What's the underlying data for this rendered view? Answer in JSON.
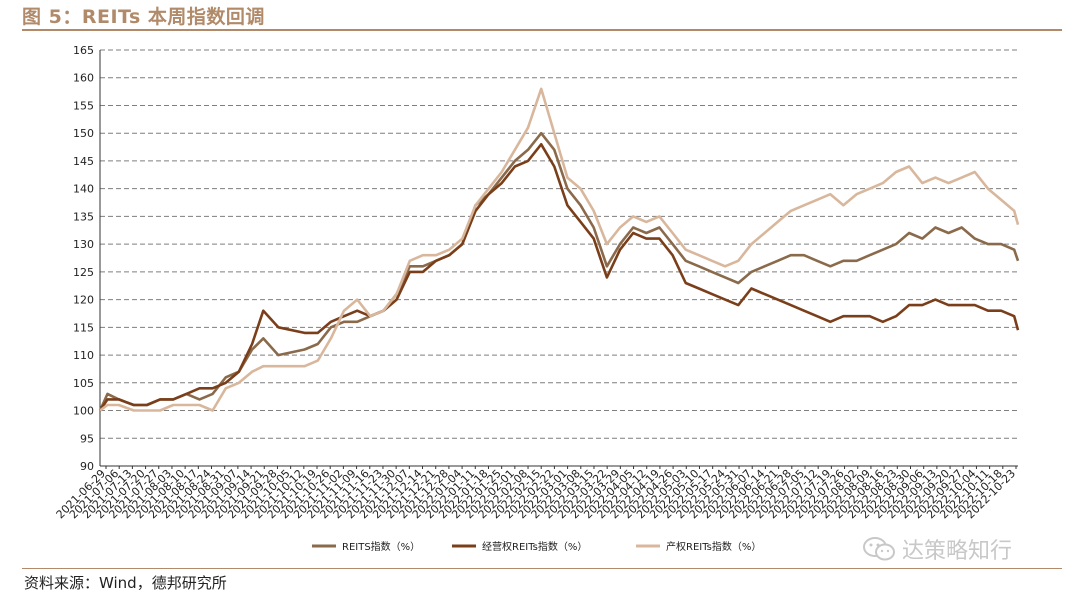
{
  "figure_title": "图 5：REITs 本周指数回调",
  "source": "资料来源：Wind，德邦研究所",
  "watermark": "达策略知行",
  "colors": {
    "reits": "#8a6a4a",
    "operating": "#7a3f1a",
    "property": "#d8b79c",
    "accent": "#b08a69",
    "grid": "#7f7f7f"
  },
  "chart_data": {
    "type": "line",
    "title": "REITs 本周指数回调",
    "xlabel": "",
    "ylabel": "",
    "ylim": [
      90,
      165
    ],
    "yticks": [
      90,
      95,
      100,
      105,
      110,
      115,
      120,
      125,
      130,
      135,
      140,
      145,
      150,
      155,
      160,
      165
    ],
    "grid": "horizontal dashed",
    "legend_position": "bottom",
    "x_tick_labels": [
      "2021-06-29",
      "2021-07-06",
      "2021-07-13",
      "2021-07-20",
      "2021-07-27",
      "2021-08-03",
      "2021-08-10",
      "2021-08-17",
      "2021-08-24",
      "2021-08-31",
      "2021-09-07",
      "2021-09-14",
      "2021-09-21",
      "2021-09-28",
      "2021-10-05",
      "2021-10-12",
      "2021-10-19",
      "2021-10-26",
      "2021-11-02",
      "2021-11-09",
      "2021-11-16",
      "2021-11-23",
      "2021-11-30",
      "2021-12-07",
      "2021-12-14",
      "2021-12-21",
      "2021-12-28",
      "2022-01-04",
      "2022-01-11",
      "2022-01-18",
      "2022-01-25",
      "2022-02-01",
      "2022-02-08",
      "2022-02-15",
      "2022-02-22",
      "2022-03-01",
      "2022-03-08",
      "2022-03-15",
      "2022-03-22",
      "2022-03-29",
      "2022-04-05",
      "2022-04-12",
      "2022-04-19",
      "2022-04-26",
      "2022-05-03",
      "2022-05-10",
      "2022-05-17",
      "2022-05-24",
      "2022-05-31",
      "2022-06-07",
      "2022-06-14",
      "2022-06-21",
      "2022-06-28",
      "2022-07-05",
      "2022-07-12",
      "2022-07-19",
      "2022-07-26",
      "2022-08-02",
      "2022-08-09",
      "2022-08-16",
      "2022-08-23",
      "2022-08-30",
      "2022-09-06",
      "2022-09-13",
      "2022-09-20",
      "2022-09-27",
      "2022-10-04",
      "2022-10-11",
      "2022-10-18",
      "2022-10-23"
    ],
    "x": [
      "2021-06-21",
      "2021-06-25",
      "2021-07-01",
      "2021-07-09",
      "2021-07-16",
      "2021-07-23",
      "2021-07-30",
      "2021-08-06",
      "2021-08-13",
      "2021-08-20",
      "2021-08-27",
      "2021-09-03",
      "2021-09-10",
      "2021-09-16",
      "2021-09-24",
      "2021-10-08",
      "2021-10-15",
      "2021-10-22",
      "2021-10-29",
      "2021-11-05",
      "2021-11-12",
      "2021-11-19",
      "2021-11-26",
      "2021-12-03",
      "2021-12-10",
      "2021-12-17",
      "2021-12-24",
      "2021-12-31",
      "2022-01-07",
      "2022-01-14",
      "2022-01-21",
      "2022-01-28",
      "2022-02-04",
      "2022-02-11",
      "2022-02-18",
      "2022-02-25",
      "2022-03-04",
      "2022-03-11",
      "2022-03-18",
      "2022-03-25",
      "2022-04-01",
      "2022-04-08",
      "2022-04-15",
      "2022-04-22",
      "2022-04-29",
      "2022-05-06",
      "2022-05-13",
      "2022-05-20",
      "2022-05-27",
      "2022-06-03",
      "2022-06-10",
      "2022-06-17",
      "2022-06-24",
      "2022-07-01",
      "2022-07-08",
      "2022-07-15",
      "2022-07-22",
      "2022-07-29",
      "2022-08-05",
      "2022-08-12",
      "2022-08-19",
      "2022-08-26",
      "2022-09-02",
      "2022-09-09",
      "2022-09-16",
      "2022-09-23",
      "2022-09-30",
      "2022-10-07",
      "2022-10-14",
      "2022-10-21",
      "2022-10-23"
    ],
    "series": [
      {
        "name": "REITS指数（%）",
        "color": "#8a6a4a",
        "values": [
          100,
          103,
          102,
          101,
          101,
          102,
          102,
          103,
          102,
          103,
          106,
          107,
          111,
          113,
          110,
          111,
          112,
          115,
          116,
          116,
          117,
          118,
          121,
          126,
          126,
          127,
          128,
          130,
          137,
          139,
          142,
          145,
          147,
          150,
          147,
          140,
          137,
          133,
          126,
          130,
          133,
          132,
          133,
          130,
          127,
          126,
          125,
          124,
          123,
          125,
          126,
          127,
          128,
          128,
          127,
          126,
          127,
          127,
          128,
          129,
          130,
          132,
          131,
          133,
          132,
          133,
          131,
          130,
          130,
          129,
          127
        ]
      },
      {
        "name": "经营权REITs指数（%）",
        "color": "#7a3f1a",
        "values": [
          100,
          102,
          102,
          101,
          101,
          102,
          102,
          103,
          104,
          104,
          105,
          107,
          112,
          118,
          115,
          114,
          114,
          116,
          117,
          118,
          117,
          118,
          120,
          125,
          125,
          127,
          128,
          130,
          136,
          139,
          141,
          144,
          145,
          148,
          144,
          137,
          134,
          131,
          124,
          129,
          132,
          131,
          131,
          128,
          123,
          122,
          121,
          120,
          119,
          122,
          121,
          120,
          119,
          118,
          117,
          116,
          117,
          117,
          117,
          116,
          117,
          119,
          119,
          120,
          119,
          119,
          119,
          118,
          118,
          117,
          114.5
        ]
      },
      {
        "name": "产权REITs指数（%）",
        "color": "#d8b79c",
        "values": [
          100,
          101,
          101,
          100,
          100,
          100,
          101,
          101,
          101,
          100,
          104,
          105,
          107,
          108,
          108,
          108,
          109,
          113,
          118,
          120,
          117,
          118,
          121,
          127,
          128,
          128,
          129,
          131,
          137,
          140,
          143,
          147,
          151,
          158,
          150,
          142,
          140,
          136,
          130,
          133,
          135,
          134,
          135,
          132,
          129,
          128,
          127,
          126,
          127,
          130,
          132,
          134,
          136,
          137,
          138,
          139,
          137,
          139,
          140,
          141,
          143,
          144,
          141,
          142,
          141,
          142,
          143,
          140,
          138,
          136,
          133.5
        ]
      }
    ]
  }
}
